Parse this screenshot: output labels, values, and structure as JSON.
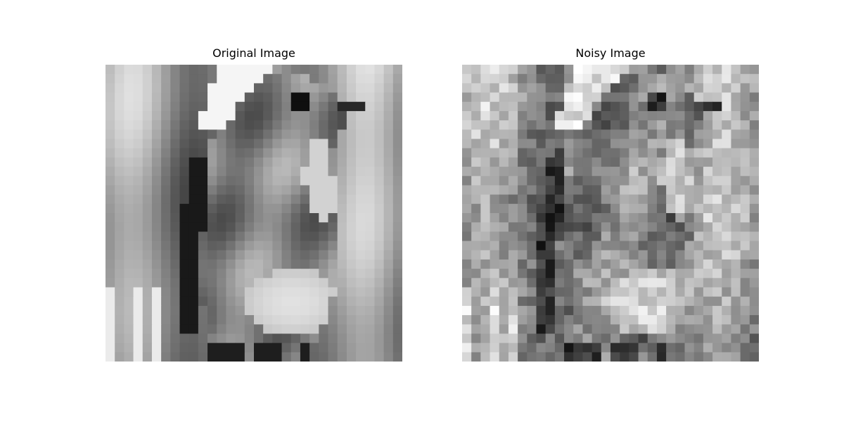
{
  "panels": [
    {
      "title": "Original Image",
      "kind": "original"
    },
    {
      "title": "Noisy Image",
      "kind": "noisy"
    }
  ],
  "image": {
    "subject": "bird",
    "colormap": "grayscale",
    "grid": [
      32,
      32
    ]
  }
}
